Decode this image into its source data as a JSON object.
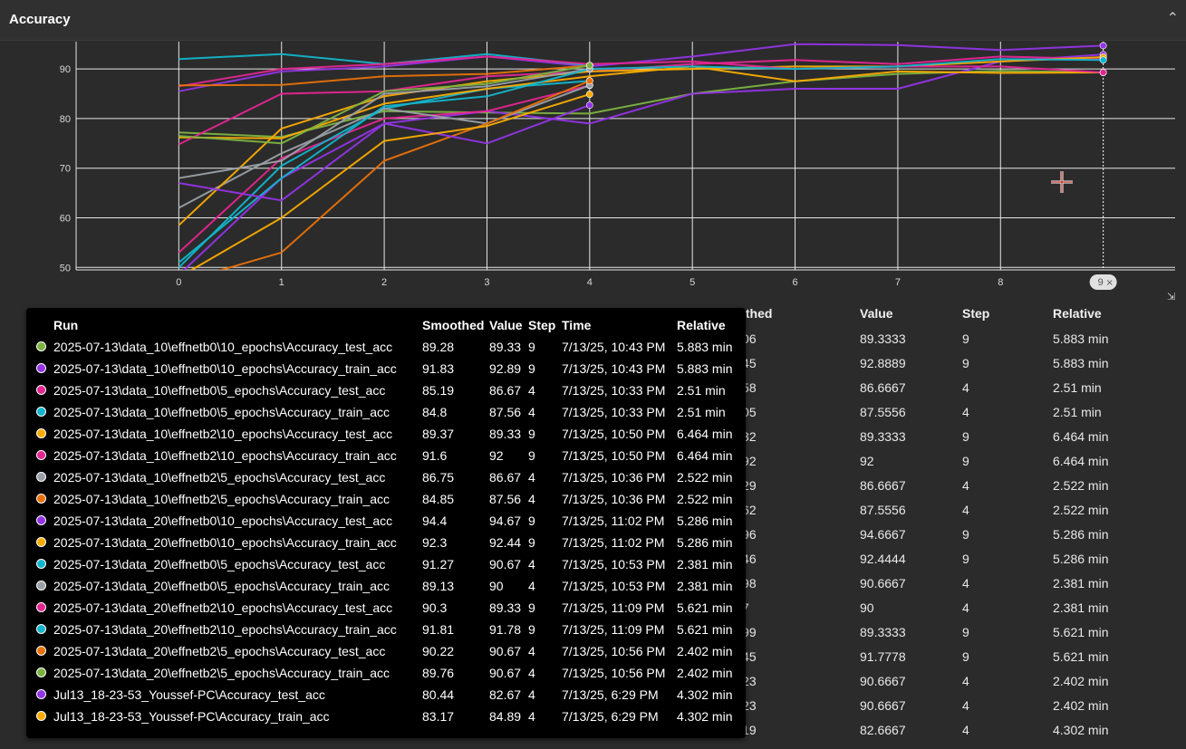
{
  "header": {
    "title": "Accuracy",
    "collapse_icon": "chevron-up-icon"
  },
  "chart_data": {
    "type": "line",
    "x_ticks": [
      0,
      1,
      2,
      3,
      4,
      5,
      6,
      7,
      8
    ],
    "y_ticks": [
      50,
      60,
      70,
      80,
      90
    ],
    "xlim": [
      -1,
      9.7
    ],
    "ylim": [
      49.5,
      95.5
    ],
    "cursor_step": 9,
    "cursor_label": "9",
    "series": [
      {
        "color": "#7cb342",
        "x": [
          0,
          1,
          2,
          3,
          4,
          5,
          6,
          7,
          8,
          9
        ],
        "y": [
          77.2,
          76.3,
          81.5,
          81.2,
          81.0,
          85.0,
          87.5,
          89.0,
          89.6,
          89.3
        ]
      },
      {
        "color": "#9334e6",
        "x": [
          0,
          1,
          2,
          3,
          4,
          5,
          6,
          7,
          8,
          9
        ],
        "y": [
          48.5,
          68.0,
          79.0,
          81.5,
          79.0,
          85.0,
          86.0,
          86.0,
          91.5,
          92.9
        ]
      },
      {
        "color": "#e52592",
        "x": [
          0,
          1,
          2,
          3,
          4
        ],
        "y": [
          53.0,
          72.0,
          80.0,
          81.5,
          86.7
        ]
      },
      {
        "color": "#12b5cb",
        "x": [
          0,
          1,
          2,
          3,
          4
        ],
        "y": [
          50.0,
          70.5,
          82.0,
          86.0,
          87.6
        ]
      },
      {
        "color": "#f9ab00",
        "x": [
          0,
          1,
          2,
          3,
          4,
          5,
          6,
          7,
          8,
          9
        ],
        "y": [
          76.2,
          76.0,
          83.0,
          86.0,
          88.5,
          90.5,
          87.5,
          89.5,
          89.2,
          89.3
        ]
      },
      {
        "color": "#e52592",
        "x": [
          0,
          1,
          2,
          3,
          4,
          5,
          6,
          7,
          8,
          9
        ],
        "y": [
          74.8,
          85.0,
          85.5,
          88.5,
          89.5,
          91.0,
          91.8,
          91.0,
          92.5,
          92.0
        ]
      },
      {
        "color": "#9aa0a6",
        "x": [
          0,
          1,
          2,
          3,
          4
        ],
        "y": [
          62.0,
          73.0,
          82.0,
          79.0,
          86.7
        ]
      },
      {
        "color": "#e8710a",
        "x": [
          0,
          1,
          2,
          3,
          4
        ],
        "y": [
          47.0,
          53.0,
          71.5,
          79.0,
          87.6
        ]
      },
      {
        "color": "#9334e6",
        "x": [
          0,
          1,
          2,
          3,
          4,
          5,
          6,
          7,
          8,
          9
        ],
        "y": [
          85.5,
          89.5,
          90.5,
          92.5,
          90.5,
          92.5,
          95.0,
          94.8,
          93.8,
          94.7
        ]
      },
      {
        "color": "#f9ab00",
        "x": [
          0,
          1,
          2,
          3,
          4,
          5,
          6,
          7,
          8,
          9
        ],
        "y": [
          58.5,
          78.0,
          84.5,
          87.5,
          89.5,
          90.0,
          90.5,
          90.5,
          91.5,
          92.4
        ]
      },
      {
        "color": "#12b5cb",
        "x": [
          0,
          1,
          2,
          3,
          4
        ],
        "y": [
          92.0,
          93.0,
          91.0,
          93.0,
          90.7
        ]
      },
      {
        "color": "#9aa0a6",
        "x": [
          0,
          1,
          2,
          3,
          4
        ],
        "y": [
          68.0,
          71.5,
          85.0,
          86.5,
          90.0
        ]
      },
      {
        "color": "#e52592",
        "x": [
          0,
          1,
          2,
          3,
          4,
          5,
          6,
          7,
          8,
          9
        ],
        "y": [
          86.5,
          90.0,
          91.0,
          92.5,
          91.0,
          91.5,
          90.0,
          90.5,
          90.5,
          89.3
        ]
      },
      {
        "color": "#12b5cb",
        "x": [
          0,
          1,
          2,
          3,
          4,
          5,
          6,
          7,
          8,
          9
        ],
        "y": [
          51.0,
          68.0,
          82.5,
          84.5,
          90.0,
          90.5,
          90.0,
          90.5,
          92.0,
          91.8
        ]
      },
      {
        "color": "#e8710a",
        "x": [
          0,
          1,
          2,
          3,
          4
        ],
        "y": [
          86.7,
          86.8,
          88.5,
          89.0,
          90.7
        ]
      },
      {
        "color": "#7cb342",
        "x": [
          0,
          1,
          2,
          3,
          4
        ],
        "y": [
          76.5,
          75.0,
          85.5,
          87.0,
          90.7
        ]
      },
      {
        "color": "#9334e6",
        "x": [
          0,
          1,
          2,
          3,
          4
        ],
        "y": [
          67.0,
          63.5,
          79.0,
          75.0,
          82.7
        ]
      },
      {
        "color": "#f9ab00",
        "x": [
          0,
          1,
          2,
          3,
          4
        ],
        "y": [
          48.0,
          60.0,
          75.5,
          78.5,
          84.9
        ]
      }
    ]
  },
  "table": {
    "headers": {
      "run": "Run ↑",
      "smoothed": "Smoothed",
      "value": "Value",
      "step": "Step",
      "relative": "Relative"
    },
    "rows": [
      {
        "run": "2025-07-13\\data_10\\effnetb0\\10_epochs\\Accuracy_test_acc",
        "smoothed": "89.2806",
        "value": "89.3333",
        "step": "9",
        "relative": "5.883 min"
      },
      {
        "run": "2025-07-13\\data_10\\effnetb0\\10_epochs\\Accuracy_train_acc",
        "smoothed": "91.8345",
        "value": "92.8889",
        "step": "9",
        "relative": "5.883 min"
      },
      {
        "run": "2025-07-13\\data_10\\effnetb0\\5_epochs\\Accuracy_test_acc",
        "smoothed": "85.1858",
        "value": "86.6667",
        "step": "4",
        "relative": "2.51 min"
      },
      {
        "run": "2025-07-13\\data_10\\effnetb0\\5_epochs\\Accuracy_train_acc",
        "smoothed": "84.8005",
        "value": "87.5556",
        "step": "4",
        "relative": "2.51 min"
      },
      {
        "run": "2025-07-13\\data_10\\effnetb2\\10_epochs\\Accuracy_test_acc",
        "smoothed": "89.3732",
        "value": "89.3333",
        "step": "9",
        "relative": "6.464 min"
      },
      {
        "run": "2025-07-13\\data_10\\effnetb2\\10_epochs\\Accuracy_train_acc",
        "smoothed": "91.5992",
        "value": "92",
        "step": "9",
        "relative": "6.464 min"
      },
      {
        "run": "2025-07-13\\data_10\\effnetb2\\5_epochs\\Accuracy_test_acc",
        "smoothed": "86.7529",
        "value": "86.6667",
        "step": "4",
        "relative": "2.522 min"
      },
      {
        "run": "2025-07-13\\data_10\\effnetb2\\5_epochs\\Accuracy_train_acc",
        "smoothed": "84.8462",
        "value": "87.5556",
        "step": "4",
        "relative": "2.522 min"
      },
      {
        "run": "2025-07-13\\data_20\\effnetb0\\10_epochs\\Accuracy_test_acc",
        "smoothed": "94.3996",
        "value": "94.6667",
        "step": "9",
        "relative": "5.286 min"
      },
      {
        "run": "2025-07-13\\data_20\\effnetb0\\10_epochs\\Accuracy_train_acc",
        "smoothed": "92.3046",
        "value": "92.4444",
        "step": "9",
        "relative": "5.286 min"
      },
      {
        "run": "2025-07-13\\data_20\\effnetb0\\5_epochs\\Accuracy_test_acc",
        "smoothed": "91.2698",
        "value": "90.6667",
        "step": "4",
        "relative": "2.381 min"
      },
      {
        "run": "2025-07-13\\data_20\\effnetb0\\5_epochs\\Accuracy_train_acc",
        "smoothed": "89.127",
        "value": "90",
        "step": "4",
        "relative": "2.381 min"
      },
      {
        "run": "2025-07-13\\data_20\\effnetb2\\10_epochs\\Accuracy_test_acc",
        "smoothed": "90.2999",
        "value": "89.3333",
        "step": "9",
        "relative": "5.621 min"
      },
      {
        "run": "2025-07-13\\data_20\\effnetb2\\10_epochs\\Accuracy_train_acc",
        "smoothed": "91.8145",
        "value": "91.7778",
        "step": "9",
        "relative": "5.621 min"
      },
      {
        "run": "2025-07-13\\data_20\\effnetb2\\5_epochs\\Accuracy_test_acc",
        "smoothed": "90.2223",
        "value": "90.6667",
        "step": "4",
        "relative": "2.402 min"
      },
      {
        "run": "2025-07-13\\data_20\\effnetb2\\5_epochs\\Accuracy_train_acc",
        "smoothed": "89.7623",
        "value": "90.6667",
        "step": "4",
        "relative": "2.402 min"
      },
      {
        "run": "Jul13_18-23-53_Youssef-PC\\Accuracy_test_acc",
        "smoothed": "80.4419",
        "value": "82.6667",
        "step": "4",
        "relative": "4.302 min"
      }
    ]
  },
  "tooltip": {
    "headers": {
      "run": "Run",
      "smoothed": "Smoothed",
      "value": "Value",
      "step": "Step",
      "time": "Time",
      "relative": "Relative"
    },
    "rows": [
      {
        "color": "#7cb342",
        "run": "2025-07-13\\data_10\\effnetb0\\10_epochs\\Accuracy_test_acc",
        "smoothed": "89.28",
        "value": "89.33",
        "step": "9",
        "time": "7/13/25, 10:43 PM",
        "relative": "5.883 min"
      },
      {
        "color": "#9334e6",
        "run": "2025-07-13\\data_10\\effnetb0\\10_epochs\\Accuracy_train_acc",
        "smoothed": "91.83",
        "value": "92.89",
        "step": "9",
        "time": "7/13/25, 10:43 PM",
        "relative": "5.883 min"
      },
      {
        "color": "#e52592",
        "run": "2025-07-13\\data_10\\effnetb0\\5_epochs\\Accuracy_test_acc",
        "smoothed": "85.19",
        "value": "86.67",
        "step": "4",
        "time": "7/13/25, 10:33 PM",
        "relative": "2.51 min"
      },
      {
        "color": "#12b5cb",
        "run": "2025-07-13\\data_10\\effnetb0\\5_epochs\\Accuracy_train_acc",
        "smoothed": "84.8",
        "value": "87.56",
        "step": "4",
        "time": "7/13/25, 10:33 PM",
        "relative": "2.51 min"
      },
      {
        "color": "#f9ab00",
        "run": "2025-07-13\\data_10\\effnetb2\\10_epochs\\Accuracy_test_acc",
        "smoothed": "89.37",
        "value": "89.33",
        "step": "9",
        "time": "7/13/25, 10:50 PM",
        "relative": "6.464 min"
      },
      {
        "color": "#e52592",
        "run": "2025-07-13\\data_10\\effnetb2\\10_epochs\\Accuracy_train_acc",
        "smoothed": "91.6",
        "value": "92",
        "step": "9",
        "time": "7/13/25, 10:50 PM",
        "relative": "6.464 min"
      },
      {
        "color": "#9aa0a6",
        "run": "2025-07-13\\data_10\\effnetb2\\5_epochs\\Accuracy_test_acc",
        "smoothed": "86.75",
        "value": "86.67",
        "step": "4",
        "time": "7/13/25, 10:36 PM",
        "relative": "2.522 min"
      },
      {
        "color": "#e8710a",
        "run": "2025-07-13\\data_10\\effnetb2\\5_epochs\\Accuracy_train_acc",
        "smoothed": "84.85",
        "value": "87.56",
        "step": "4",
        "time": "7/13/25, 10:36 PM",
        "relative": "2.522 min"
      },
      {
        "color": "#9334e6",
        "run": "2025-07-13\\data_20\\effnetb0\\10_epochs\\Accuracy_test_acc",
        "smoothed": "94.4",
        "value": "94.67",
        "step": "9",
        "time": "7/13/25, 11:02 PM",
        "relative": "5.286 min"
      },
      {
        "color": "#f9ab00",
        "run": "2025-07-13\\data_20\\effnetb0\\10_epochs\\Accuracy_train_acc",
        "smoothed": "92.3",
        "value": "92.44",
        "step": "9",
        "time": "7/13/25, 11:02 PM",
        "relative": "5.286 min"
      },
      {
        "color": "#12b5cb",
        "run": "2025-07-13\\data_20\\effnetb0\\5_epochs\\Accuracy_test_acc",
        "smoothed": "91.27",
        "value": "90.67",
        "step": "4",
        "time": "7/13/25, 10:53 PM",
        "relative": "2.381 min"
      },
      {
        "color": "#9aa0a6",
        "run": "2025-07-13\\data_20\\effnetb0\\5_epochs\\Accuracy_train_acc",
        "smoothed": "89.13",
        "value": "90",
        "step": "4",
        "time": "7/13/25, 10:53 PM",
        "relative": "2.381 min"
      },
      {
        "color": "#e52592",
        "run": "2025-07-13\\data_20\\effnetb2\\10_epochs\\Accuracy_test_acc",
        "smoothed": "90.3",
        "value": "89.33",
        "step": "9",
        "time": "7/13/25, 11:09 PM",
        "relative": "5.621 min"
      },
      {
        "color": "#12b5cb",
        "run": "2025-07-13\\data_20\\effnetb2\\10_epochs\\Accuracy_train_acc",
        "smoothed": "91.81",
        "value": "91.78",
        "step": "9",
        "time": "7/13/25, 11:09 PM",
        "relative": "5.621 min"
      },
      {
        "color": "#e8710a",
        "run": "2025-07-13\\data_20\\effnetb2\\5_epochs\\Accuracy_test_acc",
        "smoothed": "90.22",
        "value": "90.67",
        "step": "4",
        "time": "7/13/25, 10:56 PM",
        "relative": "2.402 min"
      },
      {
        "color": "#7cb342",
        "run": "2025-07-13\\data_20\\effnetb2\\5_epochs\\Accuracy_train_acc",
        "smoothed": "89.76",
        "value": "90.67",
        "step": "4",
        "time": "7/13/25, 10:56 PM",
        "relative": "2.402 min"
      },
      {
        "color": "#9334e6",
        "run": "Jul13_18-23-53_Youssef-PC\\Accuracy_test_acc",
        "smoothed": "80.44",
        "value": "82.67",
        "step": "4",
        "time": "7/13/25, 6:29 PM",
        "relative": "4.302 min"
      },
      {
        "color": "#f9ab00",
        "run": "Jul13_18-23-53_Youssef-PC\\Accuracy_train_acc",
        "smoothed": "83.17",
        "value": "84.89",
        "step": "4",
        "time": "7/13/25, 6:29 PM",
        "relative": "4.302 min"
      }
    ]
  }
}
